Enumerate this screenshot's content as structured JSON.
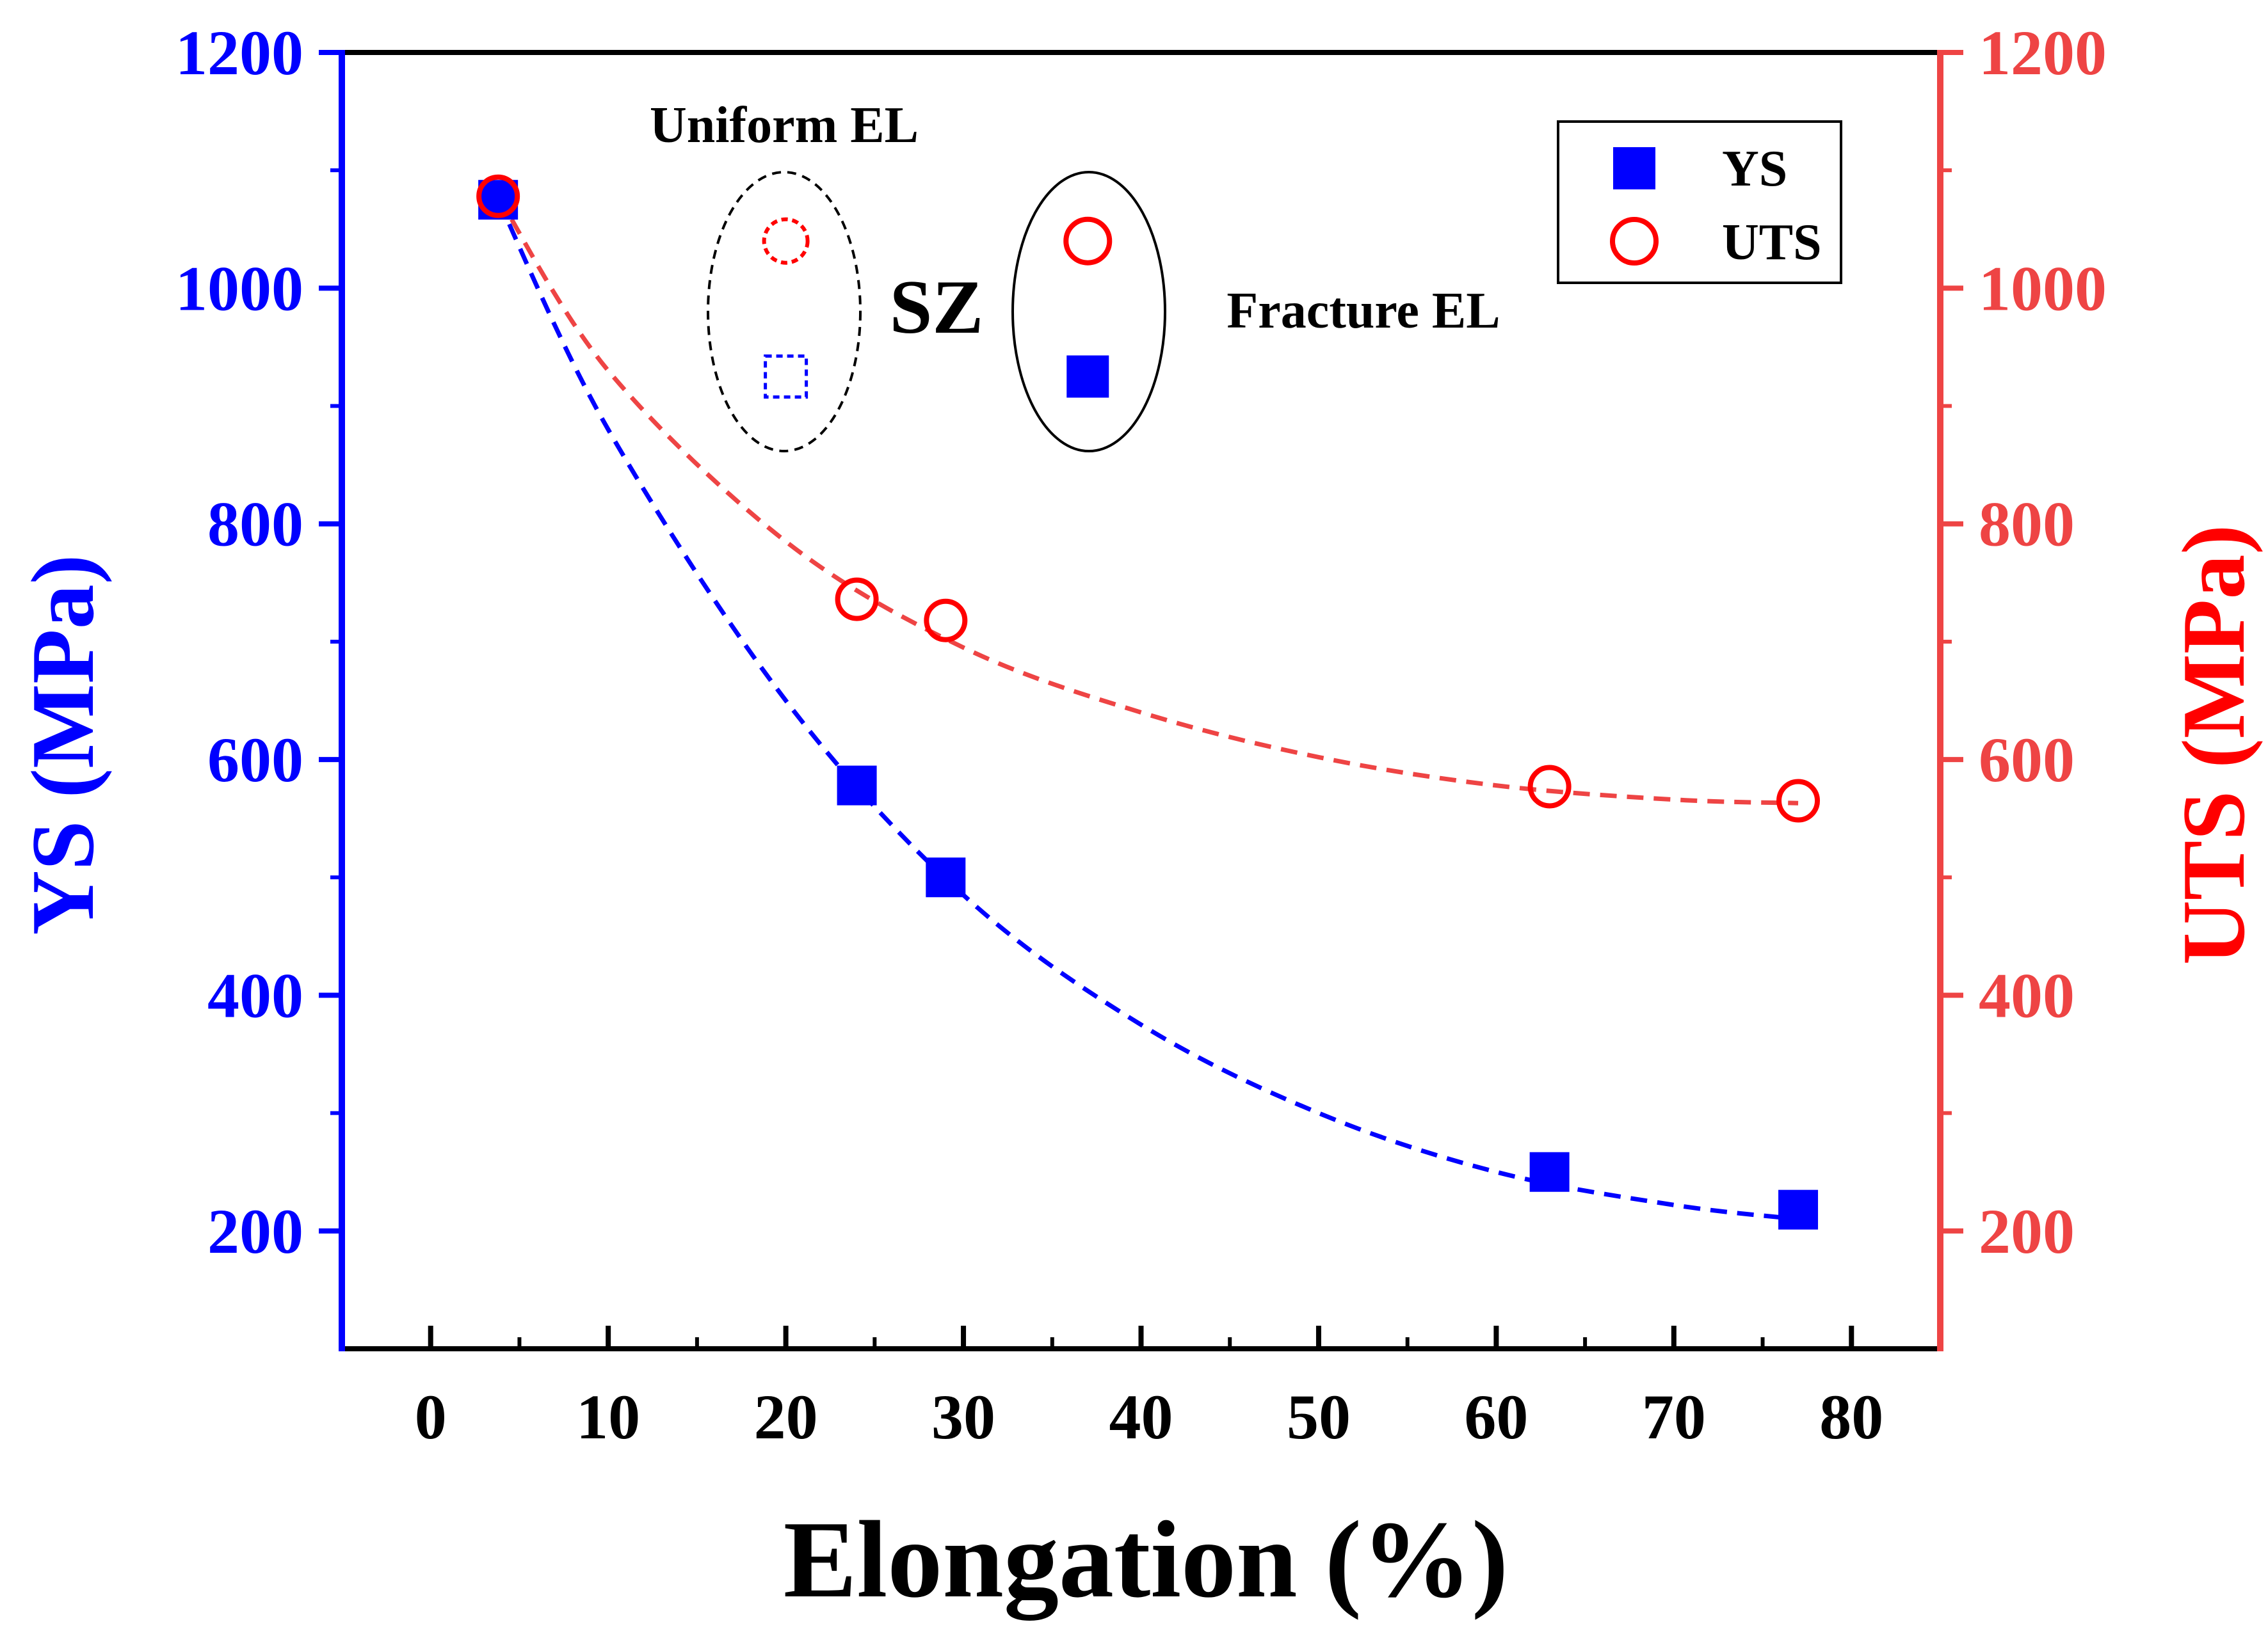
{
  "chart_data": {
    "type": "scatter",
    "title": "",
    "xlabel": "Elongation (%)",
    "ylabel_left": "YS (MPa)",
    "ylabel_right": "UTS (MPa)",
    "xlim": [
      -5,
      85
    ],
    "ylim_left": [
      100,
      1200
    ],
    "ylim_right": [
      100,
      1200
    ],
    "x_ticks": [
      0,
      10,
      20,
      30,
      40,
      50,
      60,
      70,
      80
    ],
    "y_ticks_left": [
      200,
      400,
      600,
      800,
      1000,
      1200
    ],
    "y_ticks_right": [
      200,
      400,
      600,
      800,
      1000,
      1200
    ],
    "grid": false,
    "legend_position": "top-right",
    "colors": {
      "ys": "#0000ff",
      "uts": "#ff0000",
      "uts_fit": "#ee4444"
    },
    "series": [
      {
        "name": "YS",
        "axis": "left",
        "marker": "filled-square",
        "x": [
          3.8,
          24.0,
          29.0,
          63.0,
          77.0
        ],
        "y": [
          1075,
          578,
          500,
          250,
          218
        ]
      },
      {
        "name": "UTS",
        "axis": "right",
        "marker": "open-circle",
        "x": [
          3.8,
          24.0,
          29.0,
          63.0,
          77.0
        ],
        "y": [
          1078,
          736,
          718,
          577,
          565
        ]
      }
    ],
    "fit_curves": [
      {
        "series": "YS",
        "style": "dashed",
        "x": [
          3.8,
          10,
          20,
          30,
          40,
          50,
          60,
          70,
          77
        ],
        "y": [
          1075,
          880,
          650,
          485,
          375,
          300,
          250,
          222,
          210
        ]
      },
      {
        "series": "UTS",
        "style": "dashed",
        "x": [
          3.8,
          10,
          20,
          30,
          40,
          50,
          60,
          70,
          77
        ],
        "y": [
          1078,
          930,
          785,
          695,
          640,
          602,
          578,
          566,
          563
        ]
      }
    ],
    "annotations": {
      "uniform_el_label": "Uniform EL",
      "sz_label": "SZ",
      "fracture_el_label": "Fracture EL"
    },
    "uniform_el_points": [
      {
        "series": "UTS",
        "marker": "dashed-open-circle",
        "x": 20,
        "y": 1040
      },
      {
        "series": "YS",
        "marker": "dashed-open-square",
        "x": 20,
        "y": 925
      }
    ],
    "fracture_el_points": [
      {
        "series": "UTS",
        "marker": "open-circle",
        "x": 37,
        "y": 1040
      },
      {
        "series": "YS",
        "marker": "filled-square",
        "x": 37,
        "y": 925
      }
    ],
    "legend": [
      {
        "label": "YS",
        "marker": "filled-square"
      },
      {
        "label": "UTS",
        "marker": "open-circle"
      }
    ]
  }
}
